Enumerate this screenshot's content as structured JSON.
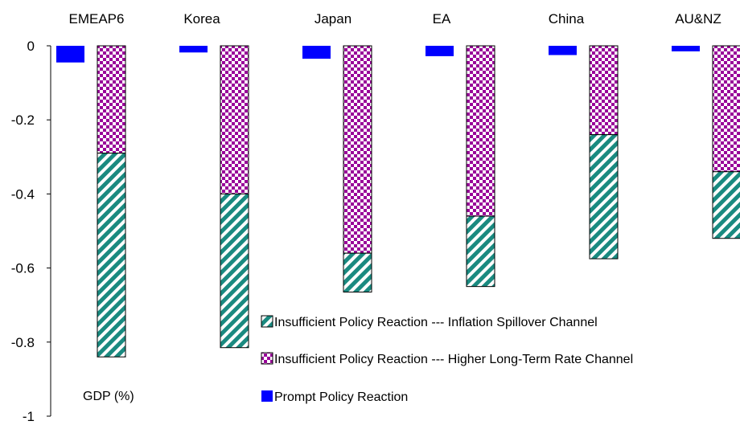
{
  "chart_data": {
    "type": "bar",
    "stacked": true,
    "categories": [
      "EMEAP6",
      "Korea",
      "Japan",
      "EA",
      "China",
      "AU&NZ"
    ],
    "series": [
      {
        "name": "Prompt Policy Reaction",
        "group": "prompt",
        "color": "#0000ff",
        "pattern": "solid",
        "values": [
          -0.045,
          -0.018,
          -0.035,
          -0.028,
          -0.025,
          -0.015
        ]
      },
      {
        "name": "Insufficient Policy Reaction --- Higher Long-Term Rate Channel",
        "group": "insufficient",
        "color": "#990099",
        "pattern": "checker",
        "values": [
          -0.29,
          -0.4,
          -0.56,
          -0.46,
          -0.24,
          -0.34
        ]
      },
      {
        "name": "Insufficient Policy Reaction --- Inflation Spillover Channel",
        "group": "insufficient",
        "color": "#1a8a80",
        "pattern": "diagonal",
        "values": [
          -0.55,
          -0.415,
          -0.105,
          -0.19,
          -0.335,
          -0.18
        ]
      }
    ],
    "ylim": [
      -1,
      0
    ],
    "yticks": [
      0,
      -0.2,
      -0.4,
      -0.6,
      -0.8,
      -1
    ],
    "ytick_labels": [
      "0",
      "-0.2",
      "-0.4",
      "-0.6",
      "-0.8",
      "-1"
    ],
    "category_labels_position": "top",
    "legend": [
      "Insufficient Policy Reaction --- Inflation Spillover Channel",
      "Insufficient Policy Reaction --- Higher Long-Term Rate Channel",
      "Prompt Policy Reaction"
    ],
    "legend_position": "bottom-right",
    "annotation": "GDP (%)",
    "grid": false
  }
}
